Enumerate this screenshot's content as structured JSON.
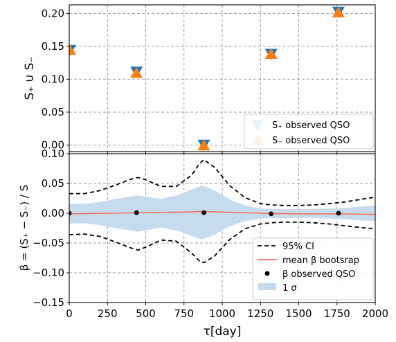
{
  "chart_data": [
    {
      "type": "scatter",
      "xlabel": "",
      "ylabel": "S₊ ∪ S₋",
      "xlim": [
        0,
        2000
      ],
      "ylim": [
        -0.01,
        0.213
      ],
      "xticks": [
        0,
        250,
        500,
        750,
        1000,
        1250,
        1500,
        1750,
        2000
      ],
      "yticks": [
        0.0,
        0.05,
        0.1,
        0.15,
        0.2
      ],
      "ytick_labels": [
        "0.00",
        "0.05",
        "0.10",
        "0.15",
        "0.20"
      ],
      "grid": true,
      "legend_position": "lower-right",
      "series": [
        {
          "name": "S₊ observed QSO",
          "marker": "triangle-down",
          "color": "#1f77b4",
          "x": [
            5,
            440,
            880,
            1320,
            1760
          ],
          "values": [
            0.145,
            0.112,
            0.001,
            0.139,
            0.203
          ]
        },
        {
          "name": "S₋ observed QSO",
          "marker": "triangle-up",
          "color": "#ff7f0e",
          "x": [
            5,
            440,
            880,
            1320,
            1760
          ],
          "values": [
            0.144,
            0.109,
            -0.001,
            0.138,
            0.201
          ]
        }
      ]
    },
    {
      "type": "line",
      "xlabel": "τ[day]",
      "ylabel": "β = (S₊ − S₋) / S",
      "xlim": [
        0,
        2000
      ],
      "ylim": [
        -0.15,
        0.1
      ],
      "xticks": [
        0,
        250,
        500,
        750,
        1000,
        1250,
        1500,
        1750,
        2000
      ],
      "xtick_labels": [
        "0",
        "250",
        "500",
        "750",
        "1000",
        "1250",
        "1500",
        "1750",
        "2000"
      ],
      "yticks": [
        -0.15,
        -0.1,
        -0.05,
        0.0,
        0.05,
        0.1
      ],
      "ytick_labels": [
        "−0.15",
        "−0.10",
        "−0.05",
        "0.00",
        "0.05",
        "0.10"
      ],
      "grid": true,
      "legend_position": "lower-right",
      "series": [
        {
          "name": "95% CI",
          "style": "dashed",
          "color": "#000000",
          "x": [
            0,
            100,
            200,
            300,
            400,
            450,
            500,
            600,
            700,
            800,
            850,
            880,
            950,
            1050,
            1150,
            1250,
            1320,
            1400,
            1500,
            1600,
            1700,
            1800,
            1900,
            2000
          ],
          "upper": [
            0.033,
            0.033,
            0.038,
            0.047,
            0.057,
            0.06,
            0.056,
            0.045,
            0.045,
            0.064,
            0.083,
            0.09,
            0.077,
            0.046,
            0.026,
            0.016,
            0.014,
            0.013,
            0.013,
            0.014,
            0.016,
            0.019,
            0.023,
            0.027
          ],
          "lower": [
            -0.036,
            -0.035,
            -0.039,
            -0.048,
            -0.058,
            -0.062,
            -0.057,
            -0.045,
            -0.047,
            -0.067,
            -0.08,
            -0.083,
            -0.072,
            -0.044,
            -0.026,
            -0.018,
            -0.016,
            -0.015,
            -0.015,
            -0.016,
            -0.018,
            -0.021,
            -0.024,
            -0.026
          ]
        },
        {
          "name": "mean β bootsrap",
          "color": "#f4735a",
          "x": [
            0,
            250,
            500,
            750,
            880,
            1000,
            1250,
            1500,
            1750,
            2000
          ],
          "values": [
            -0.001,
            0.0,
            0.001,
            0.002,
            0.003,
            0.002,
            0.0,
            -0.001,
            -0.001,
            -0.002
          ]
        },
        {
          "name": "β   observed QSO",
          "marker": "circle",
          "color": "#000000",
          "x": [
            0,
            440,
            880,
            1320,
            1760
          ],
          "values": [
            0.0,
            0.001,
            0.001,
            -0.001,
            0.0
          ]
        },
        {
          "name": "1 σ",
          "style": "band",
          "color": "#c3d9ec",
          "x": [
            0,
            100,
            200,
            300,
            400,
            450,
            500,
            600,
            700,
            800,
            850,
            880,
            950,
            1050,
            1150,
            1250,
            1320,
            1400,
            1500,
            1600,
            1700,
            1800,
            1900,
            2000
          ],
          "upper": [
            0.016,
            0.016,
            0.019,
            0.024,
            0.028,
            0.03,
            0.028,
            0.024,
            0.03,
            0.04,
            0.045,
            0.046,
            0.038,
            0.023,
            0.013,
            0.008,
            0.007,
            0.007,
            0.007,
            0.007,
            0.008,
            0.009,
            0.011,
            0.013
          ],
          "lower": [
            -0.017,
            -0.017,
            -0.02,
            -0.025,
            -0.029,
            -0.031,
            -0.029,
            -0.024,
            -0.029,
            -0.038,
            -0.043,
            -0.043,
            -0.036,
            -0.022,
            -0.013,
            -0.009,
            -0.008,
            -0.008,
            -0.008,
            -0.008,
            -0.009,
            -0.01,
            -0.012,
            -0.013
          ]
        }
      ]
    }
  ]
}
